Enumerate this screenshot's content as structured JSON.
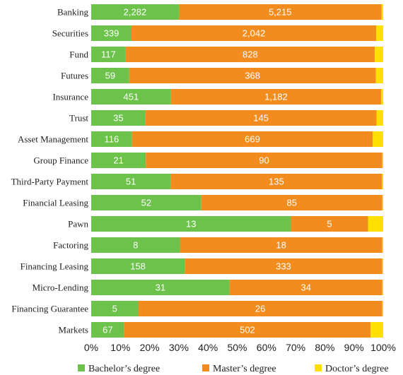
{
  "chart_data": {
    "type": "bar",
    "orientation": "horizontal",
    "stacked": "percent",
    "categories": [
      "Banking",
      "Securities",
      "Fund",
      "Futures",
      "Insurance",
      "Trust",
      "Asset Management",
      "Group Finance",
      "Third-Party Payment",
      "Financial Leasing",
      "Pawn",
      "Factoring",
      "Financing Leasing",
      "Micro-Lending",
      "Financing Guarantee",
      "Markets"
    ],
    "series": [
      {
        "name": "Bachelor's degree",
        "color": "#6cc24a",
        "values": [
          2282,
          339,
          117,
          59,
          451,
          35,
          116,
          21,
          51,
          52,
          13,
          8,
          158,
          31,
          5,
          67
        ],
        "labels": [
          "2,282",
          "339",
          "117",
          "59",
          "451",
          "35",
          "116",
          "21",
          "51",
          "52",
          "13",
          "8",
          "158",
          "31",
          "5",
          "67"
        ]
      },
      {
        "name": "Master's degree",
        "color": "#f28c1e",
        "values": [
          5215,
          2042,
          828,
          368,
          1182,
          145,
          669,
          90,
          135,
          85,
          5,
          18,
          333,
          34,
          26,
          502
        ],
        "labels": [
          "5,215",
          "2,042",
          "828",
          "368",
          "1,182",
          "145",
          "669",
          "90",
          "135",
          "85",
          "5",
          "18",
          "333",
          "34",
          "26",
          "502"
        ]
      },
      {
        "name": "Doctor's degree",
        "color": "#ffe000",
        "percent": [
          0.6,
          2.4,
          2.9,
          2.5,
          0.7,
          2.3,
          3.6,
          0.3,
          0.4,
          0.3,
          5.2,
          0.3,
          0.3,
          0.3,
          0.3,
          4.3
        ]
      }
    ],
    "shares_percent": {
      "bachelor": [
        30.0,
        13.8,
        11.8,
        13.0,
        27.3,
        18.6,
        14.0,
        18.7,
        27.2,
        37.7,
        68.4,
        30.4,
        32.0,
        47.4,
        16.1,
        11.3
      ],
      "master": [
        69.4,
        83.8,
        85.3,
        84.5,
        72.0,
        79.1,
        82.4,
        81.0,
        72.4,
        62.0,
        26.4,
        69.3,
        67.7,
        52.3,
        83.6,
        84.4
      ]
    },
    "xaxis": {
      "min": 0,
      "max": 100,
      "tick_labels": [
        "0%",
        "10%",
        "20%",
        "30%",
        "40%",
        "50%",
        "60%",
        "70%",
        "80%",
        "90%",
        "100%"
      ]
    },
    "grid": false,
    "legend": {
      "position": "bottom",
      "labels": [
        "Bachelor’s degree",
        "Master’s degree",
        "Doctor’s degree"
      ]
    },
    "title": "",
    "xlabel": "",
    "ylabel": ""
  }
}
